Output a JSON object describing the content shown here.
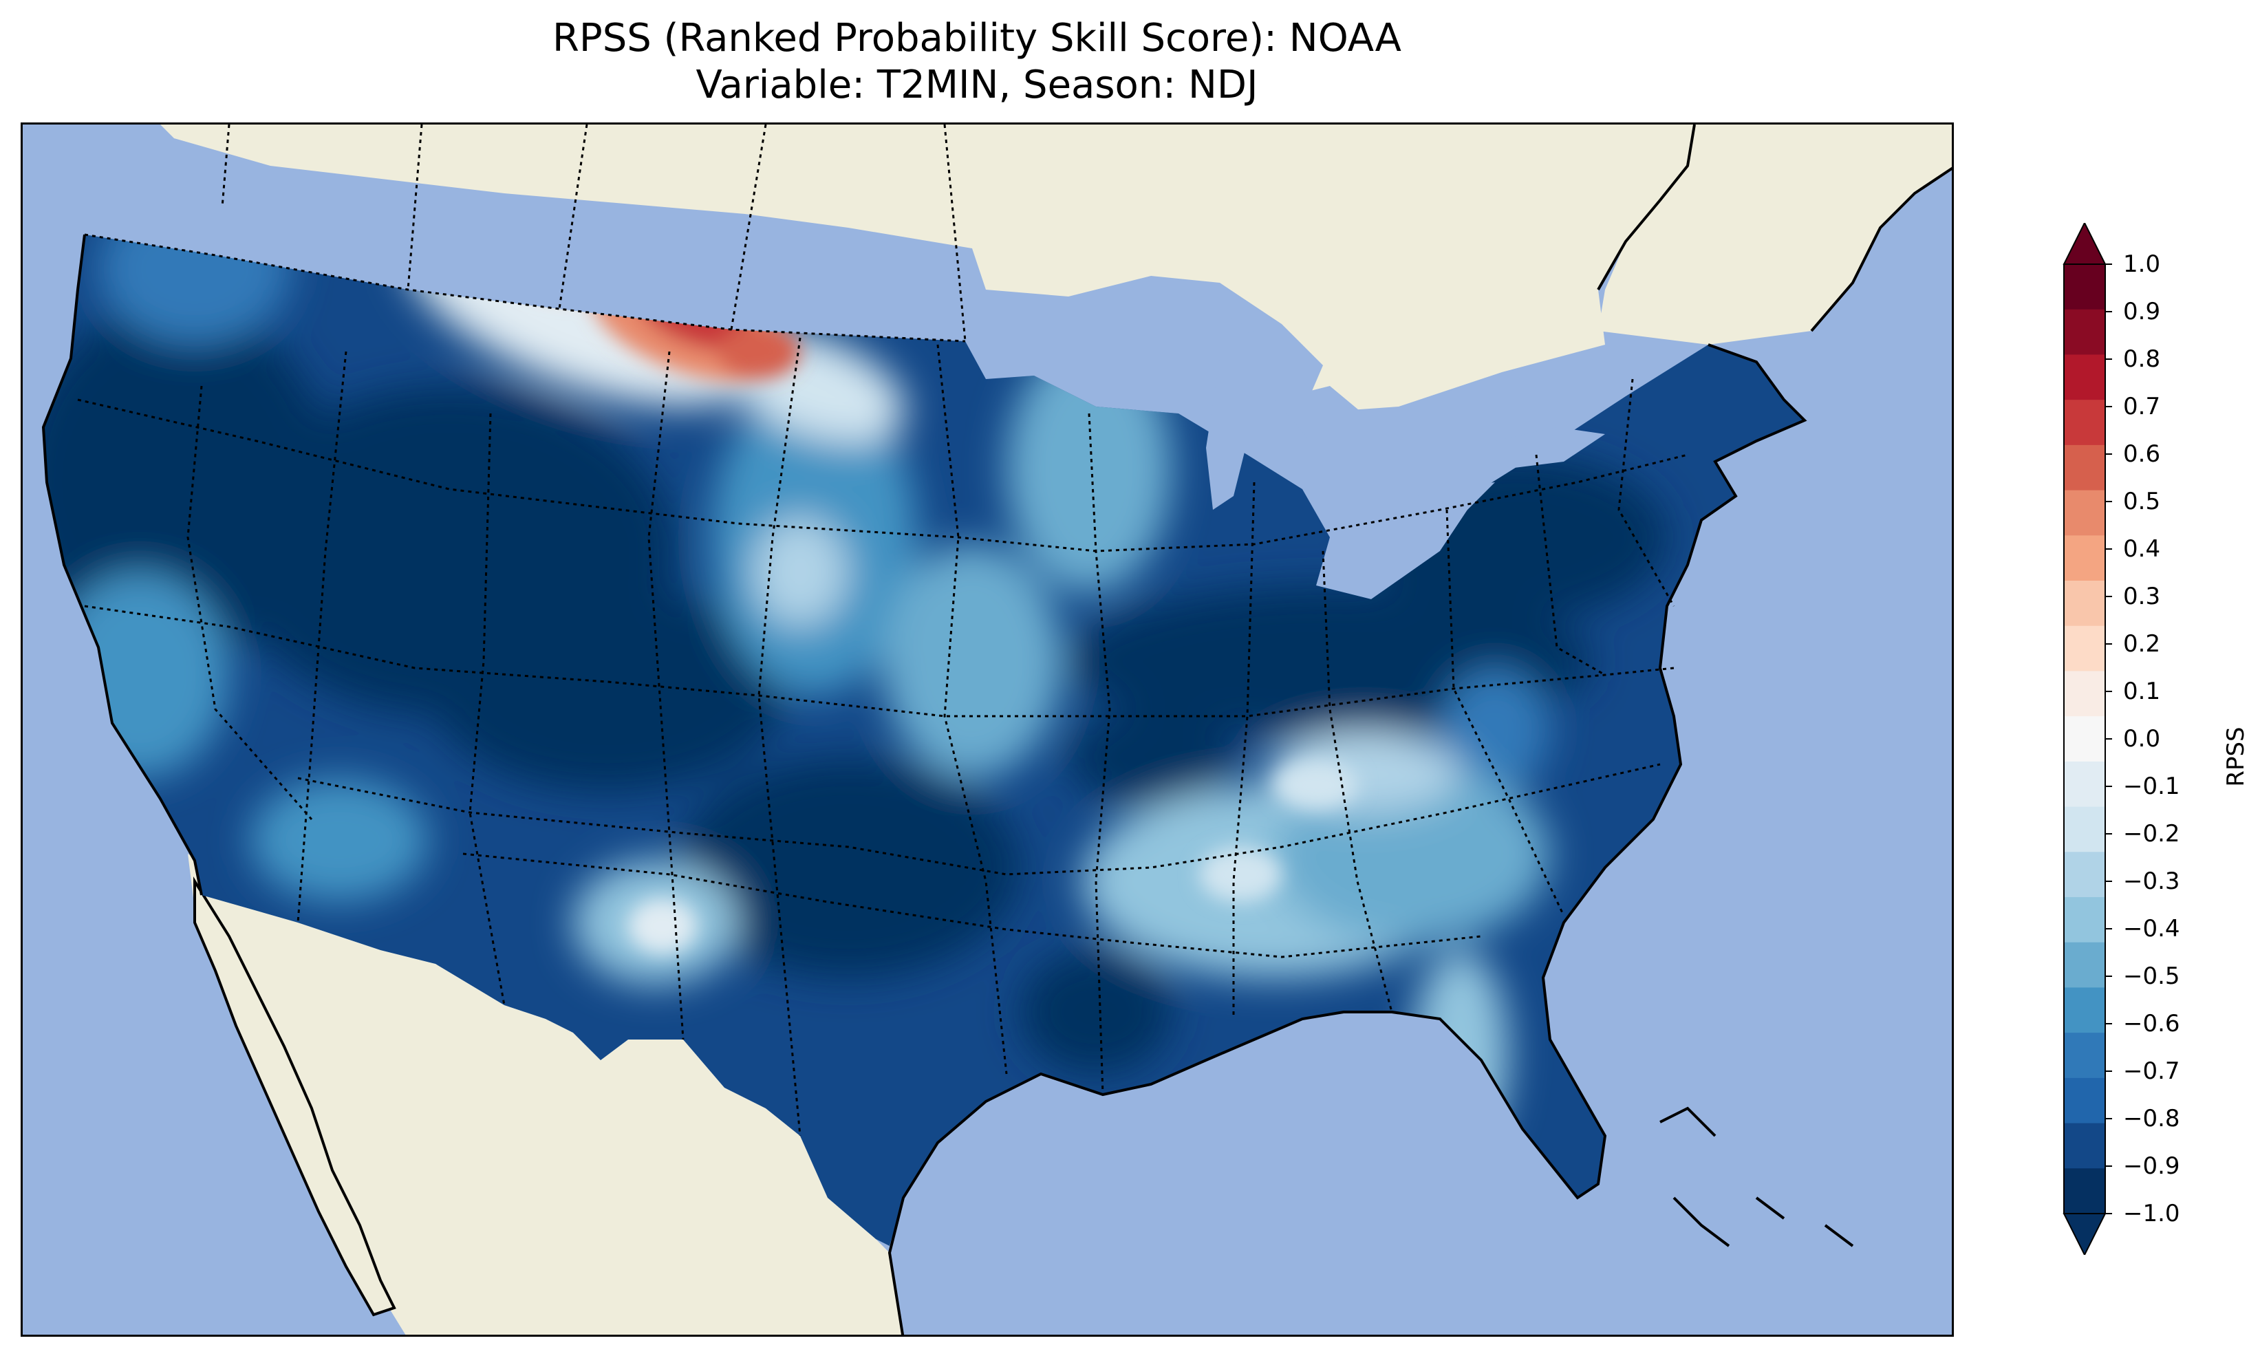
{
  "title_line_1": "RPSS (Ranked Probability Skill Score): NOAA",
  "title_line_2": "Variable: T2MIN, Season: NDJ",
  "colorbar": {
    "label": "RPSS",
    "ticks": [
      "1.0",
      "0.9",
      "0.8",
      "0.7",
      "0.6",
      "0.5",
      "0.4",
      "0.3",
      "0.2",
      "0.1",
      "0.0",
      "−0.1",
      "−0.2",
      "−0.3",
      "−0.4",
      "−0.5",
      "−0.6",
      "−0.7",
      "−0.8",
      "−0.9",
      "−1.0"
    ],
    "colors_top_to_bottom": [
      "#67001f",
      "#8a0b24",
      "#b2182b",
      "#c8393a",
      "#d6604d",
      "#e88a6c",
      "#f4a582",
      "#f9c6ab",
      "#fddbc7",
      "#f9ece5",
      "#f7f7f7",
      "#e1ecf3",
      "#d1e5f0",
      "#b0d3e7",
      "#92c5de",
      "#6aaccf",
      "#4393c3",
      "#3079b8",
      "#2166ac",
      "#134888",
      "#053061"
    ],
    "extend_top_color": "#67001f",
    "extend_bottom_color": "#053061"
  },
  "map": {
    "ocean_color": "#98b4e0",
    "land_color": "#efeddb",
    "domain": "Contiguous United States"
  }
}
